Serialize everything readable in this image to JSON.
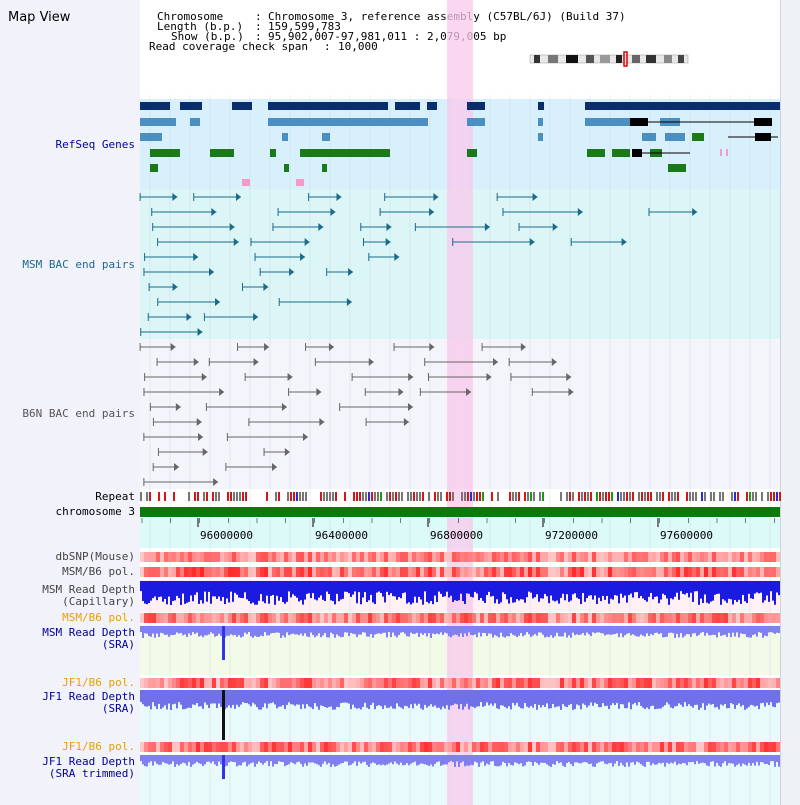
{
  "header": {
    "title": "Map View",
    "chromosome_label": "Chromosome",
    "chromosome_value": "Chromosome 3, reference assembly (C57BL/6J) (Build 37)",
    "length_label": "Length (b.p.)",
    "length_value": "159,599,783",
    "show_label": "Show (b.p.)",
    "show_value": "95,902,007-97,981,011 : 2,079,005 bp",
    "coverage_label": "Read coverage check span",
    "coverage_value": "10,000"
  },
  "tracks": {
    "refseq": "RefSeq Genes",
    "msm_bac": "MSM BAC end pairs",
    "b6n_bac": "B6N BAC end pairs",
    "repeat": "Repeat",
    "chromosome": "chromosome 3",
    "dbsnp": "dbSNP(Mouse)",
    "msm_b6_pol_1": "MSM/B6 pol.",
    "msm_read_cap_1": "MSM Read Depth",
    "msm_read_cap_2": "(Capillary)",
    "msm_b6_pol_2": "MSM/B6 pol.",
    "msm_read_sra_1": "MSM Read Depth",
    "msm_read_sra_2": "(SRA)",
    "jf1_b6_pol_1": "JF1/B6 pol.",
    "jf1_read_sra_1": "JF1 Read Depth",
    "jf1_read_sra_2": "(SRA)",
    "jf1_b6_pol_2": "JF1/B6 pol.",
    "jf1_read_trim_1": "JF1 Read Depth",
    "jf1_read_trim_2": "(SRA trimmed)"
  },
  "axis": {
    "ticks": [
      "96000000",
      "96400000",
      "96800000",
      "97200000",
      "97600000"
    ]
  },
  "colors": {
    "refseq_dark": "#0a2e6b",
    "refseq_mid": "#4a8fc0",
    "refseq_green": "#1a7a1a",
    "msm_bac": "#1a6a8a",
    "b6n_bac": "#666666",
    "chromosome_bar": "#0a7a0a",
    "highlight": "#f9c8ec",
    "label_blue": "#000099",
    "label_orange": "#e8a000"
  }
}
